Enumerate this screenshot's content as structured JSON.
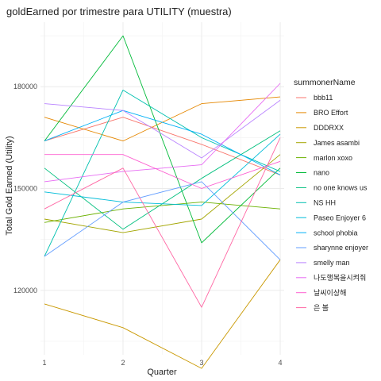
{
  "chart_data": {
    "type": "line",
    "title": "goldEarned por trimestre para UTILITY (muestra)",
    "xlabel": "Quarter",
    "ylabel": "Total Gold Earned (Utility)",
    "x": [
      1,
      2,
      3,
      4
    ],
    "x_ticks": [
      "1",
      "2",
      "3",
      "4"
    ],
    "y_ticks": [
      120000,
      150000,
      180000
    ],
    "y_tick_labels": [
      "120000",
      "150000",
      "180000"
    ],
    "xlim": [
      0.95,
      4.05
    ],
    "ylim": [
      101000,
      199000
    ],
    "grid": true,
    "legend_position": "right",
    "legend_title": "summonerName",
    "series": [
      {
        "name": "bbb11",
        "color": "#F8766D",
        "values": [
          164000,
          171000,
          163000,
          154000
        ]
      },
      {
        "name": "BRO Effort",
        "color": "#E58700",
        "values": [
          171000,
          164000,
          175000,
          177000
        ]
      },
      {
        "name": "DDDRXX",
        "color": "#C99800",
        "values": [
          116000,
          109000,
          97000,
          129000
        ]
      },
      {
        "name": "James asambi",
        "color": "#A3A500",
        "values": [
          141000,
          137000,
          141000,
          160000
        ]
      },
      {
        "name": "marlon xoxo",
        "color": "#6BB100",
        "values": [
          140000,
          144000,
          146000,
          144000
        ]
      },
      {
        "name": "nano",
        "color": "#00BA38",
        "values": [
          164000,
          195000,
          134000,
          156000
        ]
      },
      {
        "name": "no one knows us",
        "color": "#00BF7D",
        "values": [
          156000,
          138000,
          153000,
          167000
        ]
      },
      {
        "name": "NS HH",
        "color": "#00C0AF",
        "values": [
          130000,
          179000,
          165000,
          155000
        ]
      },
      {
        "name": "Paseo Enjoyer 6",
        "color": "#00BCD8",
        "values": [
          149000,
          146000,
          145000,
          166000
        ]
      },
      {
        "name": "school phobia",
        "color": "#00B0F6",
        "values": [
          164000,
          173000,
          166000,
          154000
        ]
      },
      {
        "name": "sharynne enjoyer",
        "color": "#619CFF",
        "values": [
          130000,
          146000,
          152000,
          129000
        ]
      },
      {
        "name": "smelly man",
        "color": "#B983FF",
        "values": [
          175000,
          173000,
          159000,
          176000
        ]
      },
      {
        "name": "나도행복을시켜줘",
        "color": "#E76BF3",
        "values": [
          152000,
          155000,
          157000,
          181000
        ]
      },
      {
        "name": "날씨이상해",
        "color": "#FD61D1",
        "values": [
          160000,
          160000,
          150000,
          158000
        ]
      },
      {
        "name": "은 볼",
        "color": "#FF67A4",
        "values": [
          144000,
          156000,
          115000,
          165000
        ]
      }
    ]
  }
}
